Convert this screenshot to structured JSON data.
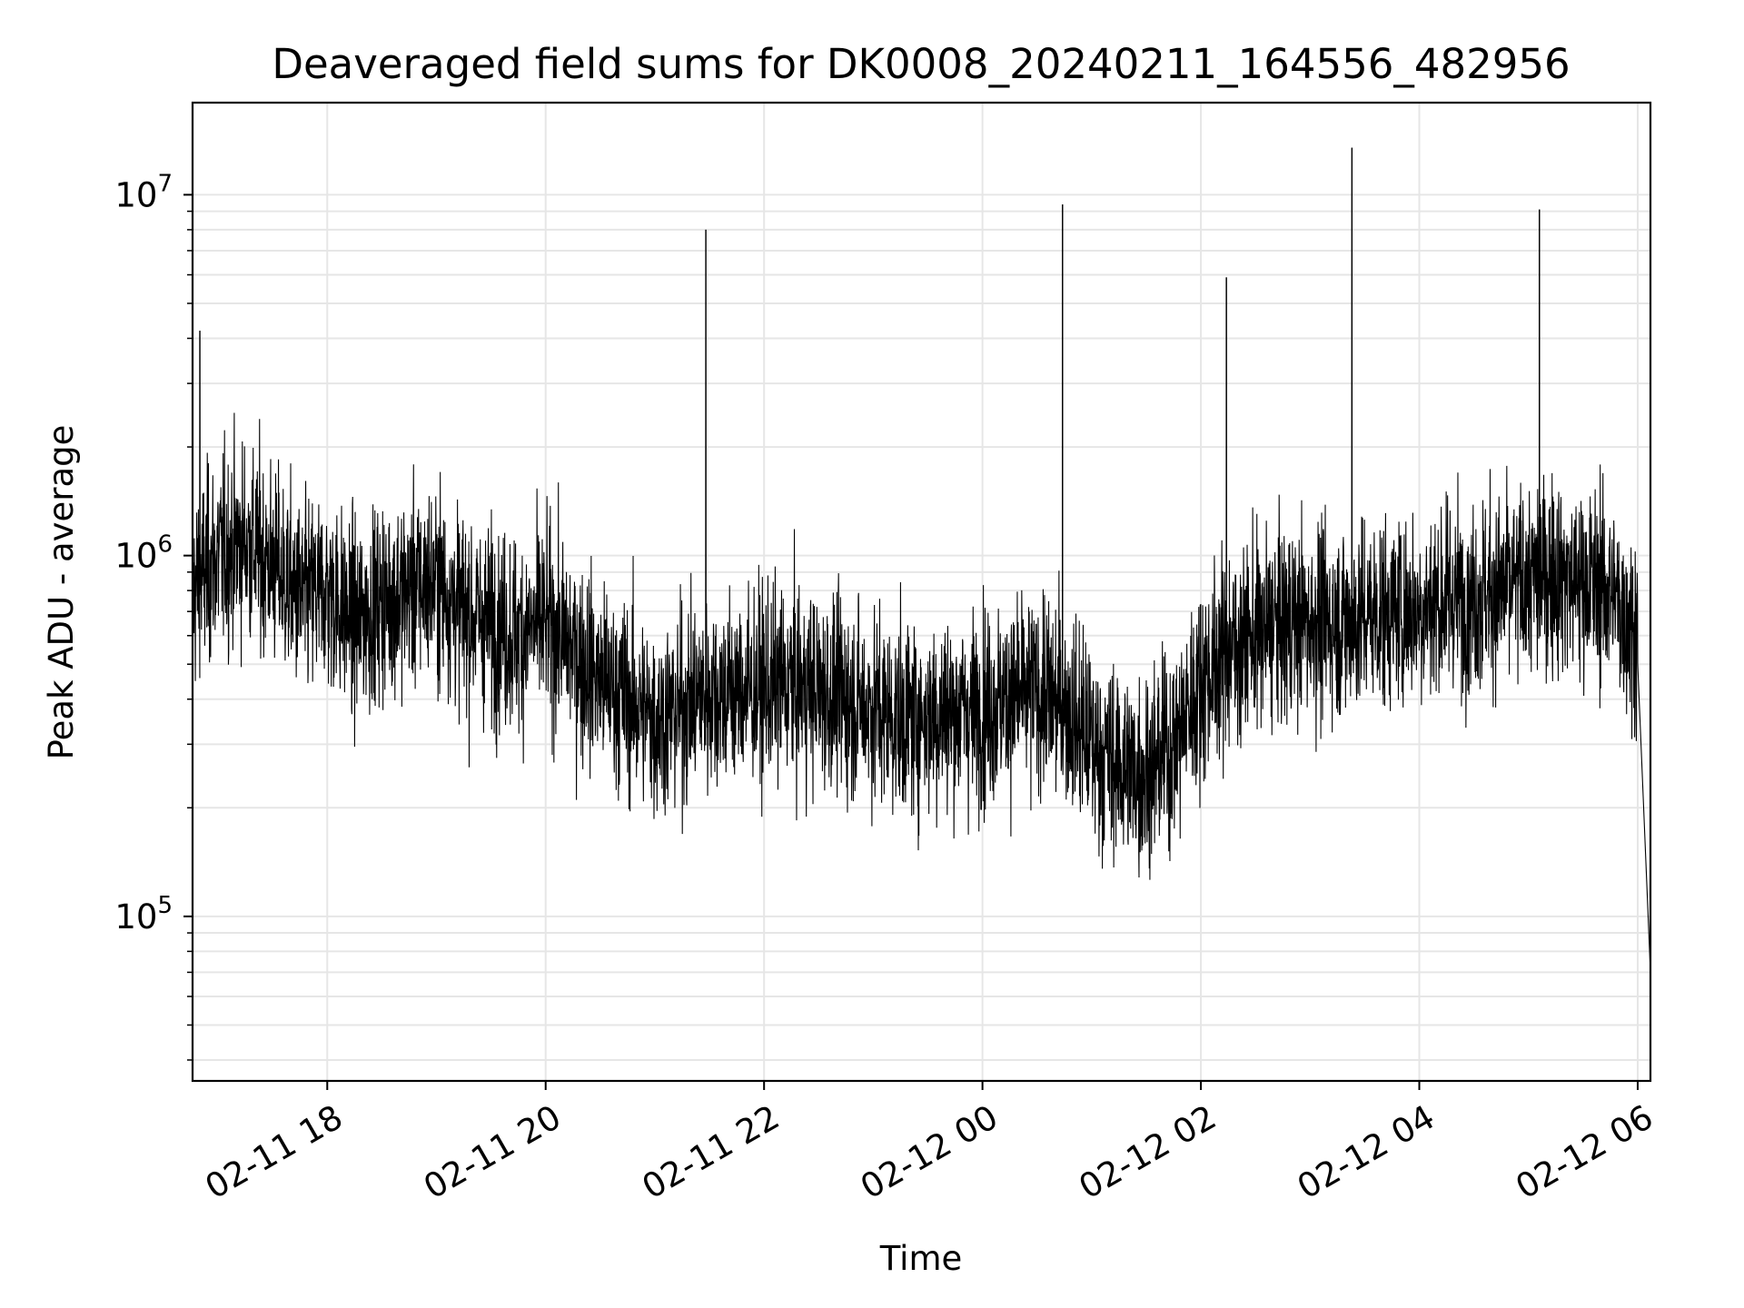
{
  "chart_data": {
    "type": "line",
    "title": "Deaveraged field sums for DK0008_20240211_164556_482956",
    "xlabel": "Time",
    "ylabel": "Peak ADU - average",
    "yscale": "log",
    "grid": true,
    "line_color": "#000000",
    "grid_color": "#e6e6e6",
    "xlim": [
      "2024-02-11 16:46",
      "2024-02-12 06:07"
    ],
    "ylim": [
      35000,
      18000000
    ],
    "x_ticks": [
      {
        "time": "2024-02-11 18:00",
        "label": "02-11 18"
      },
      {
        "time": "2024-02-11 20:00",
        "label": "02-11 20"
      },
      {
        "time": "2024-02-11 22:00",
        "label": "02-11 22"
      },
      {
        "time": "2024-02-12 00:00",
        "label": "02-12 00"
      },
      {
        "time": "2024-02-12 02:00",
        "label": "02-12 02"
      },
      {
        "time": "2024-02-12 04:00",
        "label": "02-12 04"
      },
      {
        "time": "2024-02-12 06:00",
        "label": "02-12 06"
      }
    ],
    "y_ticks": [
      {
        "value": 100000,
        "base": "10",
        "exp": "5"
      },
      {
        "value": 1000000,
        "base": "10",
        "exp": "6"
      },
      {
        "value": 10000000,
        "base": "10",
        "exp": "7"
      }
    ],
    "series": [
      {
        "name": "",
        "x": [
          "2024-02-11 16:46",
          "2024-02-11 17:00",
          "2024-02-11 17:15",
          "2024-02-11 17:30",
          "2024-02-11 17:45",
          "2024-02-11 18:00",
          "2024-02-11 18:15",
          "2024-02-11 18:30",
          "2024-02-11 18:45",
          "2024-02-11 19:00",
          "2024-02-11 19:15",
          "2024-02-11 19:30",
          "2024-02-11 19:45",
          "2024-02-11 20:00",
          "2024-02-11 20:15",
          "2024-02-11 20:30",
          "2024-02-11 20:45",
          "2024-02-11 21:00",
          "2024-02-11 21:15",
          "2024-02-11 21:30",
          "2024-02-11 21:45",
          "2024-02-11 22:00",
          "2024-02-11 22:15",
          "2024-02-11 22:30",
          "2024-02-11 22:45",
          "2024-02-11 23:00",
          "2024-02-11 23:15",
          "2024-02-11 23:30",
          "2024-02-11 23:45",
          "2024-02-12 00:00",
          "2024-02-12 00:15",
          "2024-02-12 00:30",
          "2024-02-12 00:45",
          "2024-02-12 01:00",
          "2024-02-12 01:15",
          "2024-02-12 01:30",
          "2024-02-12 01:45",
          "2024-02-12 02:00",
          "2024-02-12 02:15",
          "2024-02-12 02:30",
          "2024-02-12 02:45",
          "2024-02-12 03:00",
          "2024-02-12 03:15",
          "2024-02-12 03:30",
          "2024-02-12 03:45",
          "2024-02-12 04:00",
          "2024-02-12 04:15",
          "2024-02-12 04:30",
          "2024-02-12 04:45",
          "2024-02-12 05:00",
          "2024-02-12 05:15",
          "2024-02-12 05:30",
          "2024-02-12 05:45",
          "2024-02-12 06:00",
          "2024-02-12 06:07"
        ],
        "y": [
          800000,
          1000000,
          1100000,
          950000,
          750000,
          800000,
          650000,
          750000,
          800000,
          850000,
          700000,
          650000,
          600000,
          650000,
          550000,
          450000,
          400000,
          350000,
          380000,
          420000,
          420000,
          430000,
          440000,
          420000,
          400000,
          380000,
          350000,
          360000,
          370000,
          380000,
          400000,
          420000,
          380000,
          300000,
          260000,
          250000,
          300000,
          450000,
          550000,
          600000,
          650000,
          660000,
          650000,
          680000,
          700000,
          720000,
          760000,
          780000,
          800000,
          850000,
          900000,
          850000,
          800000,
          600000,
          70000
        ]
      }
    ],
    "spikes": [
      {
        "time": "2024-02-11 16:50",
        "value": 4200000
      },
      {
        "time": "2024-02-11 21:28",
        "value": 8000000
      },
      {
        "time": "2024-02-12 00:44",
        "value": 9400000
      },
      {
        "time": "2024-02-12 02:14",
        "value": 5900000
      },
      {
        "time": "2024-02-12 03:23",
        "value": 13500000
      },
      {
        "time": "2024-02-12 05:06",
        "value": 9100000
      }
    ]
  }
}
